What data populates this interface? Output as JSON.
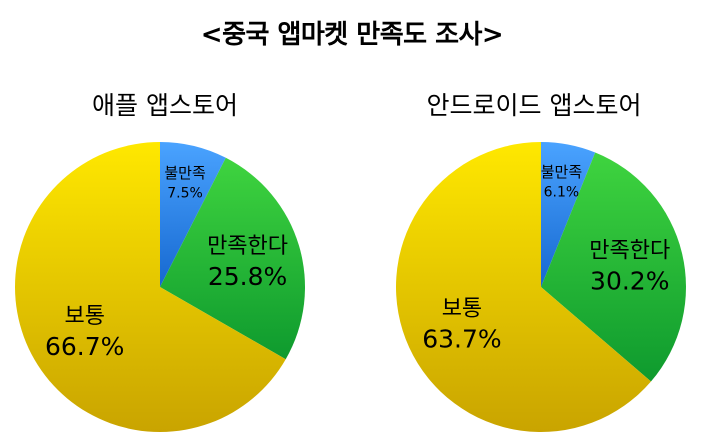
{
  "title": "<중국 앱마켓 만족도 조사>",
  "colors": {
    "bad": "#1e7ae0",
    "good": "#22b33a",
    "normal": "#dcb800"
  },
  "chart_data": [
    {
      "type": "pie",
      "title": "애플 앱스토어",
      "slices": [
        {
          "label": "불만족",
          "value": 7.5,
          "value_label": "7.5%"
        },
        {
          "label": "만족한다",
          "value": 25.8,
          "value_label": "25.8%"
        },
        {
          "label": "보통",
          "value": 66.7,
          "value_label": "66.7%"
        }
      ]
    },
    {
      "type": "pie",
      "title": "안드로이드 앱스토어",
      "slices": [
        {
          "label": "불만족",
          "value": 6.1,
          "value_label": "6.1%"
        },
        {
          "label": "만족한다",
          "value": 30.2,
          "value_label": "30.2%"
        },
        {
          "label": "보통",
          "value": 63.7,
          "value_label": "63.7%"
        }
      ]
    }
  ]
}
